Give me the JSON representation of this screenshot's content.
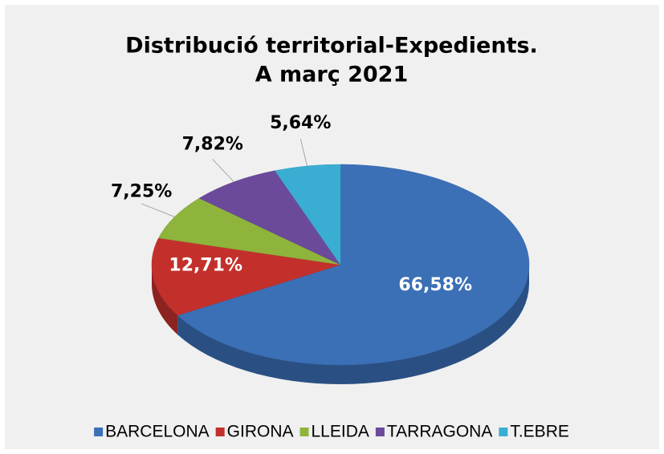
{
  "chart_data": {
    "type": "pie3d",
    "title": [
      "Distribució territorial-Expedients.",
      "A març 2021"
    ],
    "categories": [
      "BARCELONA",
      "GIRONA",
      "LLEIDA",
      "TARRAGONA",
      "T.EBRE"
    ],
    "values": [
      66.58,
      12.71,
      7.25,
      7.82,
      5.64
    ],
    "value_labels": [
      "66,58%",
      "12,71%",
      "7,25%",
      "7,82%",
      "5,64%"
    ],
    "colors": [
      "#3b6fb6",
      "#c3302c",
      "#8fb43c",
      "#6b4a9c",
      "#3aaed2"
    ],
    "legend": "bottom"
  }
}
